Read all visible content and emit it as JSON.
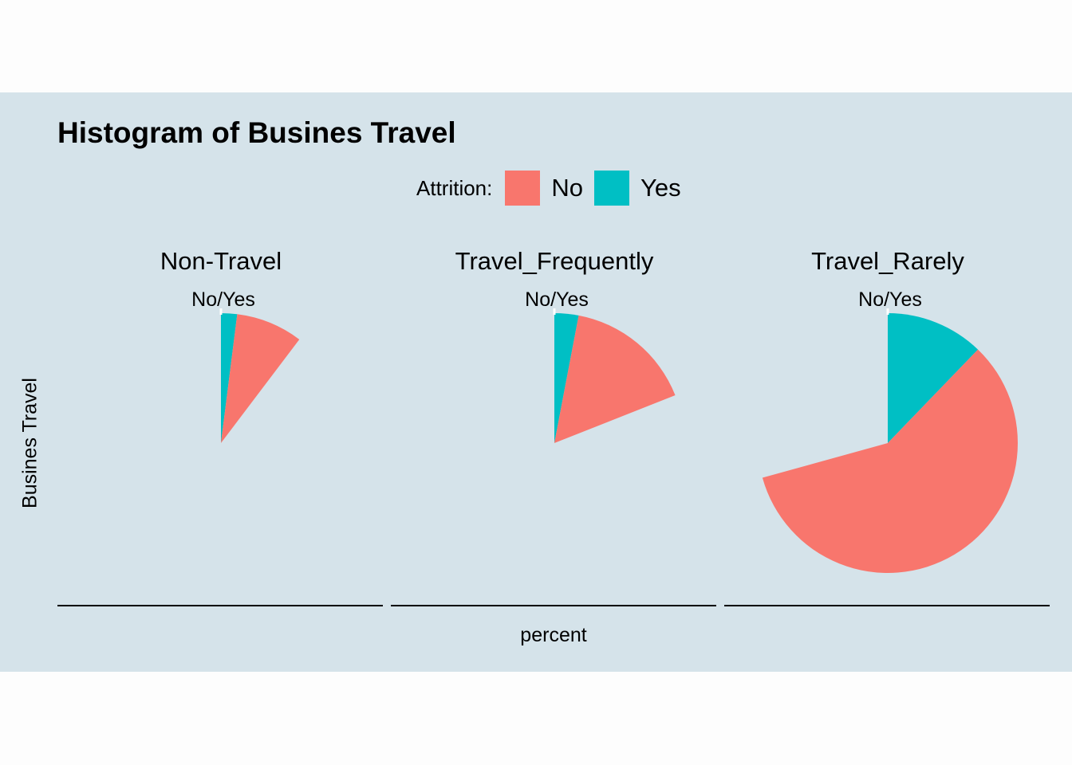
{
  "chart_data": {
    "type": "pie",
    "title": "Histogram of Busines Travel",
    "xlabel": "percent",
    "ylabel": "Busines Travel",
    "legend": {
      "title": "Attrition:",
      "position": "top",
      "entries": [
        {
          "name": "No",
          "color": "#f8766d"
        },
        {
          "name": "Yes",
          "color": "#00bfc4"
        }
      ]
    },
    "tick_label": "No/Yes",
    "facets": [
      {
        "name": "Non-Travel",
        "values": {
          "No": 8.3,
          "Yes": 2.0
        }
      },
      {
        "name": "Travel_Frequently",
        "values": {
          "No": 16.0,
          "Yes": 3.0
        }
      },
      {
        "name": "Travel_Rarely",
        "values": {
          "No": 58.5,
          "Yes": 12.2
        }
      }
    ],
    "total": 100
  }
}
